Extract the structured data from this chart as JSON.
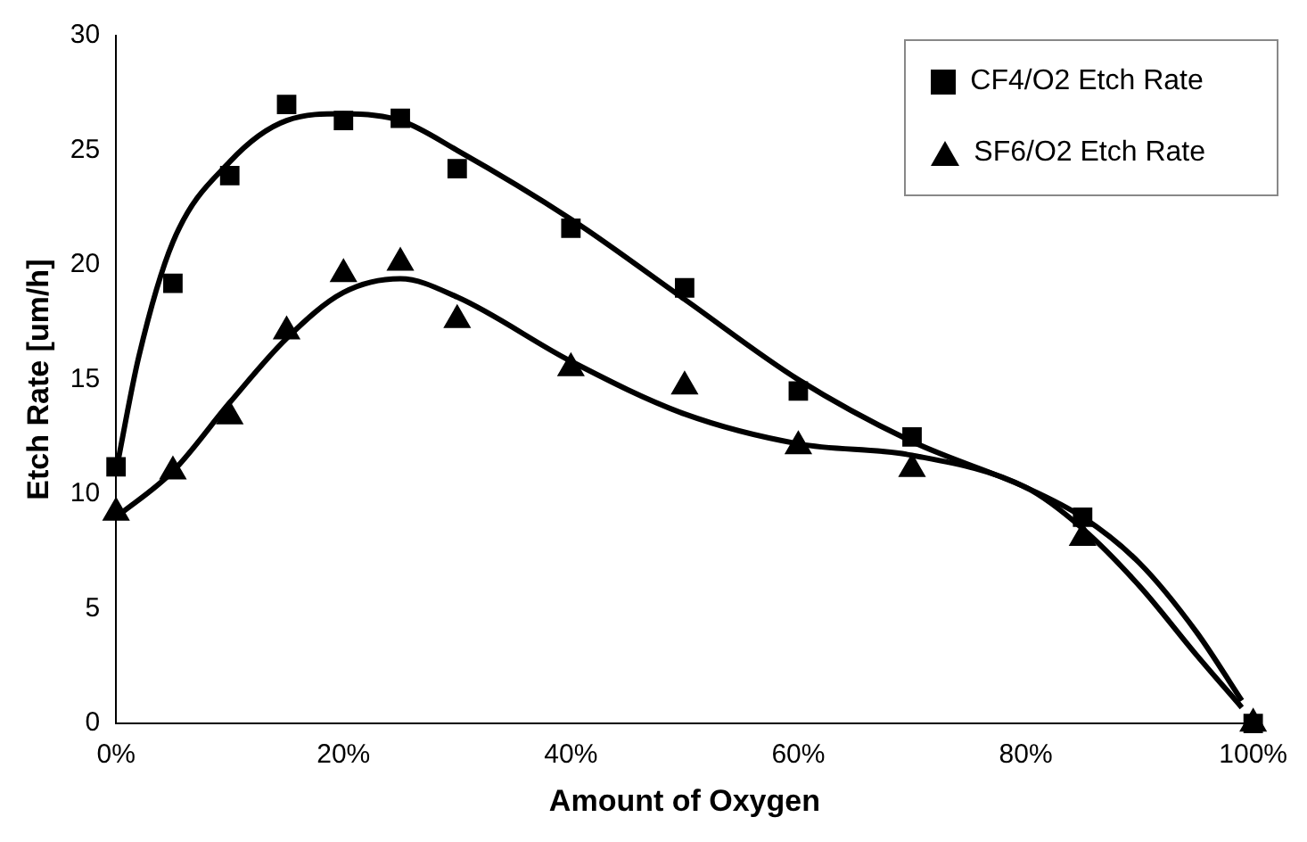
{
  "chart_data": {
    "type": "scatter",
    "xlabel": "Amount of Oxygen",
    "ylabel": "Etch Rate [um/h]",
    "xlim": [
      0,
      100
    ],
    "xticks": [
      {
        "value": 0,
        "label": "0%"
      },
      {
        "value": 20,
        "label": "20%"
      },
      {
        "value": 40,
        "label": "40%"
      },
      {
        "value": 60,
        "label": "60%"
      },
      {
        "value": 80,
        "label": "80%"
      },
      {
        "value": 100,
        "label": "100%"
      }
    ],
    "ylim": [
      0,
      30
    ],
    "yticks": [
      0,
      5,
      10,
      15,
      20,
      25,
      30
    ],
    "grid": false,
    "legend": "top right",
    "series": [
      {
        "name": "CF4/O2 Etch Rate",
        "marker": "square",
        "color": "#000000",
        "x": [
          0,
          5,
          10,
          15,
          20,
          25,
          30,
          40,
          50,
          60,
          70,
          85,
          100
        ],
        "values": [
          11.2,
          19.2,
          23.9,
          27,
          26.3,
          26.4,
          24.2,
          21.6,
          19,
          14.5,
          12.5,
          9,
          0
        ]
      },
      {
        "name": "SF6/O2 Etch Rate",
        "marker": "triangle",
        "color": "#000000",
        "x": [
          0,
          5,
          10,
          15,
          20,
          25,
          30,
          40,
          50,
          60,
          70,
          85,
          100
        ],
        "values": [
          9.2,
          11,
          13.4,
          17.1,
          19.6,
          20.1,
          17.6,
          15.5,
          14.7,
          12.1,
          11.1,
          8.1,
          0
        ]
      },
      {
        "type": "line",
        "marker": "none",
        "color": "#000000",
        "x": [
          0,
          2,
          5,
          10,
          15,
          20,
          25,
          30,
          40,
          50,
          60,
          70,
          80,
          85,
          90,
          95,
          99
        ],
        "values": [
          11,
          16,
          21,
          24.5,
          26.3,
          26.6,
          26.3,
          25,
          22,
          18.5,
          15,
          12.3,
          10.3,
          9,
          7,
          4,
          1
        ]
      },
      {
        "type": "line",
        "marker": "none",
        "color": "#000000",
        "x": [
          0,
          5,
          10,
          15,
          20,
          25,
          30,
          40,
          50,
          60,
          70,
          80,
          85,
          90,
          95,
          99
        ],
        "values": [
          9,
          11,
          14,
          16.8,
          18.8,
          19.4,
          18.6,
          15.8,
          13.5,
          12.2,
          11.7,
          10.3,
          8.5,
          6,
          3,
          0.7
        ]
      }
    ]
  }
}
